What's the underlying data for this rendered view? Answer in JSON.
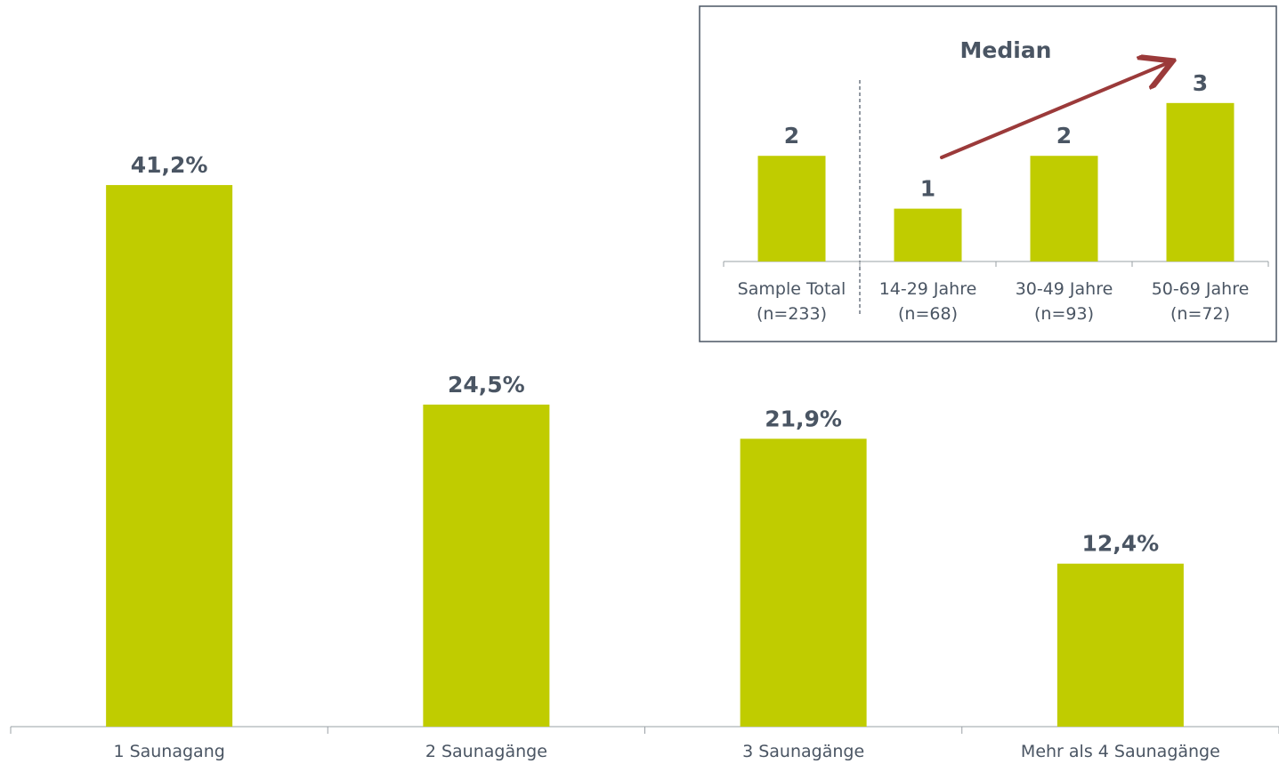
{
  "chart_data": [
    {
      "type": "bar",
      "categories": [
        "1 Saunagang",
        "2 Saunagänge",
        "3 Saunagänge",
        "Mehr als 4 Saunagänge"
      ],
      "values": [
        41.2,
        24.5,
        21.9,
        12.4
      ],
      "value_labels": [
        "41,2%",
        "24,5%",
        "21,9%",
        "12,4%"
      ],
      "title": "",
      "xlabel": "",
      "ylabel": "",
      "ylim": [
        0,
        50
      ],
      "grid": false,
      "bar_color": "#c0cc00"
    },
    {
      "type": "bar",
      "title": "Median",
      "categories": [
        [
          "Sample Total",
          "(n=233)"
        ],
        [
          "14-29 Jahre",
          "(n=68)"
        ],
        [
          "30-49 Jahre",
          "(n=93)"
        ],
        [
          "50-69 Jahre",
          "(n=72)"
        ]
      ],
      "values": [
        2,
        1,
        2,
        3
      ],
      "value_labels": [
        "2",
        "1",
        "2",
        "3"
      ],
      "ylim": [
        0,
        3.3
      ],
      "grid": false,
      "legend": "none",
      "bar_color": "#c0cc00",
      "annotation": {
        "type": "trend-arrow",
        "color": "#9b3a3a"
      },
      "separator_after_category": 0
    }
  ]
}
